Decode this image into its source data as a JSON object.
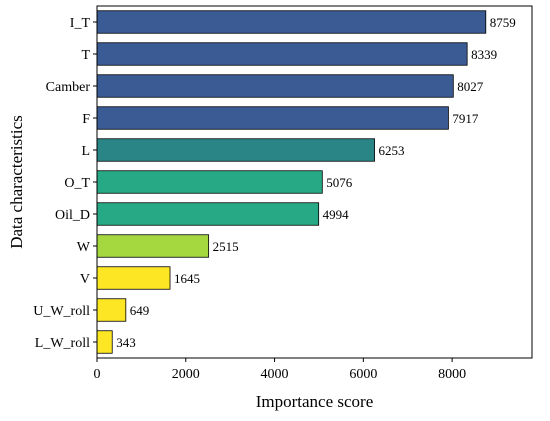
{
  "chart_data": {
    "type": "bar",
    "orientation": "horizontal",
    "xlabel": "Importance score",
    "ylabel": "Data characteristics",
    "xlim": [
      0,
      9800
    ],
    "xticks": [
      0,
      2000,
      4000,
      6000,
      8000
    ],
    "xtick_labels": [
      "0",
      "2000",
      "4000",
      "6000",
      "8000"
    ],
    "categories": [
      "I_T",
      "T",
      "Camber",
      "F",
      "L",
      "O_T",
      "Oil_D",
      "W",
      "V",
      "U_W_roll",
      "L_W_roll"
    ],
    "values": [
      8759,
      8339,
      8027,
      7917,
      6253,
      5076,
      4994,
      2515,
      1645,
      649,
      343
    ],
    "value_labels": [
      "8759",
      "8339",
      "8027",
      "7917",
      "6253",
      "5076",
      "4994",
      "2515",
      "1645",
      "649",
      "343"
    ],
    "bar_colors": [
      "#3a5b93",
      "#3a5b93",
      "#3a5b93",
      "#3a5b93",
      "#2a8587",
      "#26a984",
      "#26a984",
      "#a5d73f",
      "#fde725",
      "#fde725",
      "#fde725"
    ],
    "grid": false,
    "legend": "none"
  }
}
